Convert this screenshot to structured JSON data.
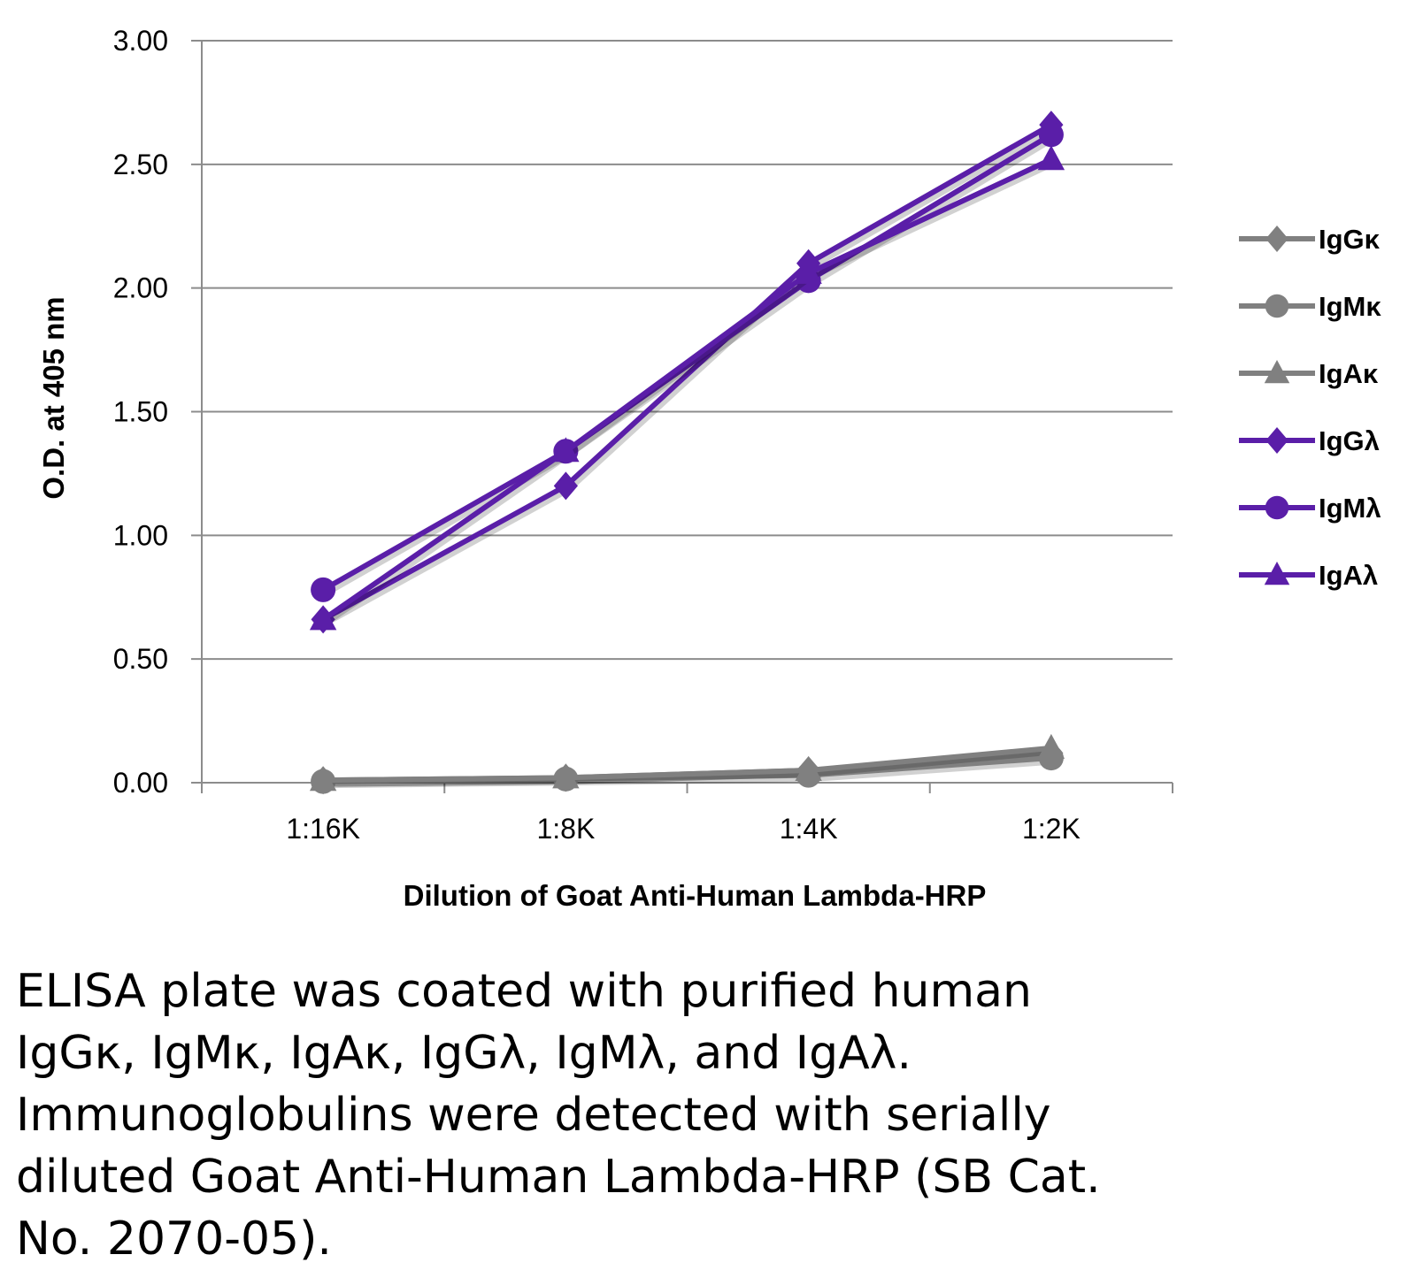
{
  "chart_data": {
    "type": "line",
    "title": "",
    "xlabel": "Dilution of Goat Anti-Human Lambda-HRP",
    "ylabel": "O.D. at 405 nm",
    "categories": [
      "1:16K",
      "1:8K",
      "1:4K",
      "1:2K"
    ],
    "ylim": [
      0,
      3
    ],
    "yticks": [
      "0.00",
      "0.50",
      "1.00",
      "1.50",
      "2.00",
      "2.50",
      "3.00"
    ],
    "grid": "horizontal",
    "legend_position": "right",
    "series": [
      {
        "name": "IgGκ",
        "marker": "diamond",
        "color": "#808080",
        "values": [
          0.01,
          0.02,
          0.05,
          0.12
        ]
      },
      {
        "name": "IgMκ",
        "marker": "circle",
        "color": "#808080",
        "values": [
          0.005,
          0.015,
          0.03,
          0.1
        ]
      },
      {
        "name": "IgAκ",
        "marker": "triangle",
        "color": "#808080",
        "values": [
          0.01,
          0.02,
          0.05,
          0.14
        ]
      },
      {
        "name": "IgGλ",
        "marker": "diamond",
        "color": "#5a1ea8",
        "values": [
          0.66,
          1.2,
          2.1,
          2.66
        ]
      },
      {
        "name": "IgMλ",
        "marker": "circle",
        "color": "#5a1ea8",
        "values": [
          0.78,
          1.34,
          2.03,
          2.62
        ]
      },
      {
        "name": "IgAλ",
        "marker": "triangle",
        "color": "#5a1ea8",
        "values": [
          0.66,
          1.34,
          2.06,
          2.52
        ]
      }
    ]
  },
  "caption": {
    "lines": [
      "ELISA plate was coated with purified human",
      "IgGκ, IgMκ, IgAκ, IgGλ, IgMλ, and IgAλ.",
      "Immunoglobulins were detected with serially",
      "diluted Goat Anti-Human Lambda-HRP (SB Cat.",
      "No. 2070-05)."
    ]
  }
}
